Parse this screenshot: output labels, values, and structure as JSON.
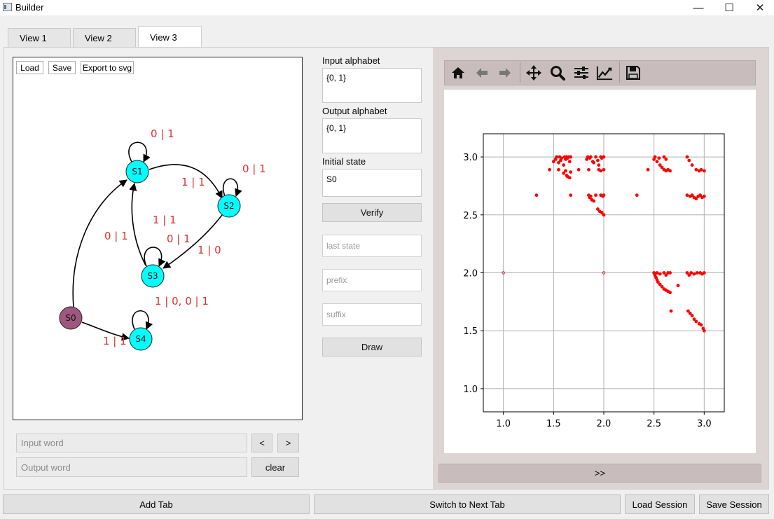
{
  "window": {
    "title": "Builder",
    "minimize_glyph": "—",
    "maximize_glyph": "☐",
    "close_glyph": "✕"
  },
  "tabs": [
    {
      "label": "View 1"
    },
    {
      "label": "View 2"
    },
    {
      "label": "View 3",
      "active": true
    }
  ],
  "graph": {
    "buttons": {
      "load": "Load",
      "save": "Save",
      "export": "Export to svg"
    },
    "nodes": [
      {
        "id": "S0",
        "label": "S0",
        "color": "#a0577f",
        "initial": true
      },
      {
        "id": "S1",
        "label": "S1",
        "color": "#00ffff"
      },
      {
        "id": "S2",
        "label": "S2",
        "color": "#00ffff"
      },
      {
        "id": "S3",
        "label": "S3",
        "color": "#00ffff"
      },
      {
        "id": "S4",
        "label": "S4",
        "color": "#00ffff"
      }
    ],
    "edges": [
      {
        "from": "S1",
        "to": "S1",
        "label": "0 | 1"
      },
      {
        "from": "S1",
        "to": "S2",
        "label": "1 | 1"
      },
      {
        "from": "S2",
        "to": "S2",
        "label": "0 | 1"
      },
      {
        "from": "S2",
        "to": "S3",
        "label": "1 | 0"
      },
      {
        "from": "S3",
        "to": "S1",
        "label": "1 | 1"
      },
      {
        "from": "S3",
        "to": "S3",
        "label": "0 | 1"
      },
      {
        "from": "S0",
        "to": "S1",
        "label": "0 | 1"
      },
      {
        "from": "S0",
        "to": "S4",
        "label": "1 | 1"
      },
      {
        "from": "S4",
        "to": "S4",
        "label": "1 | 0, 0 | 1"
      }
    ],
    "edge_label_color": "#e03030"
  },
  "word_controls": {
    "input_placeholder": "Input word",
    "output_placeholder": "Output word",
    "prev_label": "<",
    "next_label": ">",
    "clear_label": "clear"
  },
  "settings": {
    "input_alphabet_label": "Input alphabet",
    "input_alphabet_value": "{0, 1}",
    "output_alphabet_label": "Output alphabet",
    "output_alphabet_value": "{0, 1}",
    "initial_state_label": "Initial state",
    "initial_state_value": "S0",
    "verify_label": "Verify",
    "last_state_placeholder": "last state",
    "prefix_placeholder": "prefix",
    "suffix_placeholder": "suffix",
    "draw_label": "Draw"
  },
  "plot_toolbar": {
    "icons": [
      "home-icon",
      "back-arrow-icon",
      "forward-arrow-icon",
      "pan-icon",
      "zoom-icon",
      "configure-subplots-icon",
      "edit-axis-icon",
      "save-figure-icon"
    ]
  },
  "expand_label": ">>",
  "bottom_bar": {
    "add_tab": "Add Tab",
    "switch_tab": "Switch to Next Tab",
    "load_session": "Load Session",
    "save_session": "Save Session"
  },
  "chart_data": {
    "type": "scatter",
    "title": "",
    "xlabel": "",
    "ylabel": "",
    "xlim": [
      0.8,
      3.2
    ],
    "ylim": [
      0.8,
      3.2
    ],
    "xticks": [
      "1.0",
      "1.5",
      "2.0",
      "2.5",
      "3.0"
    ],
    "yticks": [
      "1.0",
      "1.5",
      "2.0",
      "2.5",
      "3.0"
    ],
    "grid": true,
    "marker_color": "#ff0000",
    "points": [
      [
        1.0,
        2.0
      ],
      [
        2.0,
        2.0
      ],
      [
        1.33,
        2.67
      ],
      [
        1.46,
        2.89
      ],
      [
        1.5,
        2.96
      ],
      [
        1.52,
        2.98
      ],
      [
        1.53,
        3.0
      ],
      [
        1.55,
        2.95
      ],
      [
        1.56,
        3.0
      ],
      [
        1.57,
        2.97
      ],
      [
        1.58,
        2.99
      ],
      [
        1.6,
        2.93
      ],
      [
        1.61,
        3.0
      ],
      [
        1.62,
        2.98
      ],
      [
        1.63,
        3.0
      ],
      [
        1.64,
        2.99
      ],
      [
        1.65,
        3.0
      ],
      [
        1.66,
        2.96
      ],
      [
        1.67,
        3.0
      ],
      [
        1.55,
        2.89
      ],
      [
        1.6,
        2.86
      ],
      [
        1.62,
        2.88
      ],
      [
        1.63,
        2.84
      ],
      [
        1.64,
        2.83
      ],
      [
        1.66,
        2.82
      ],
      [
        1.67,
        2.87
      ],
      [
        1.67,
        2.67
      ],
      [
        1.75,
        2.89
      ],
      [
        1.83,
        2.98
      ],
      [
        1.84,
        3.0
      ],
      [
        1.86,
        2.99
      ],
      [
        1.87,
        3.0
      ],
      [
        1.89,
        2.96
      ],
      [
        1.9,
        2.95
      ],
      [
        1.92,
        3.0
      ],
      [
        1.94,
        2.97
      ],
      [
        1.95,
        2.93
      ],
      [
        1.97,
        3.0
      ],
      [
        1.98,
        2.99
      ],
      [
        2.0,
        3.0
      ],
      [
        1.85,
        2.67
      ],
      [
        1.86,
        2.65
      ],
      [
        1.87,
        2.66
      ],
      [
        1.88,
        2.63
      ],
      [
        1.9,
        2.62
      ],
      [
        1.92,
        2.67
      ],
      [
        1.94,
        2.55
      ],
      [
        1.96,
        2.53
      ],
      [
        1.98,
        2.52
      ],
      [
        2.0,
        2.5
      ],
      [
        1.95,
        2.89
      ],
      [
        1.97,
        2.88
      ],
      [
        2.0,
        2.89
      ],
      [
        1.97,
        2.67
      ],
      [
        1.99,
        2.66
      ],
      [
        2.0,
        2.67
      ],
      [
        1.85,
        2.89
      ],
      [
        2.33,
        2.67
      ],
      [
        2.44,
        2.89
      ],
      [
        2.5,
        2.98
      ],
      [
        2.51,
        3.0
      ],
      [
        2.53,
        2.96
      ],
      [
        2.55,
        2.99
      ],
      [
        2.56,
        2.93
      ],
      [
        2.58,
        2.91
      ],
      [
        2.6,
        2.89
      ],
      [
        2.62,
        2.88
      ],
      [
        2.64,
        2.89
      ],
      [
        2.66,
        2.88
      ],
      [
        2.6,
        3.0
      ],
      [
        2.62,
        2.98
      ],
      [
        2.83,
        3.0
      ],
      [
        2.85,
        2.97
      ],
      [
        2.88,
        2.93
      ],
      [
        2.92,
        2.89
      ],
      [
        2.95,
        2.88
      ],
      [
        2.97,
        2.89
      ],
      [
        3.0,
        2.88
      ],
      [
        2.83,
        2.67
      ],
      [
        2.86,
        2.66
      ],
      [
        2.88,
        2.67
      ],
      [
        2.9,
        2.65
      ],
      [
        2.92,
        2.64
      ],
      [
        2.94,
        2.66
      ],
      [
        2.96,
        2.67
      ],
      [
        2.98,
        2.65
      ],
      [
        3.0,
        2.66
      ],
      [
        2.5,
        2.0
      ],
      [
        2.51,
        1.98
      ],
      [
        2.52,
        1.96
      ],
      [
        2.53,
        1.94
      ],
      [
        2.54,
        1.92
      ],
      [
        2.56,
        1.9
      ],
      [
        2.58,
        1.88
      ],
      [
        2.6,
        1.86
      ],
      [
        2.62,
        1.85
      ],
      [
        2.64,
        1.84
      ],
      [
        2.66,
        1.83
      ],
      [
        2.53,
        2.0
      ],
      [
        2.56,
        1.99
      ],
      [
        2.6,
        2.0
      ],
      [
        2.62,
        1.98
      ],
      [
        2.64,
        2.0
      ],
      [
        2.66,
        2.0
      ],
      [
        2.67,
        1.67
      ],
      [
        2.74,
        1.89
      ],
      [
        2.83,
        2.0
      ],
      [
        2.85,
        1.98
      ],
      [
        2.87,
        2.0
      ],
      [
        2.9,
        1.99
      ],
      [
        2.93,
        2.0
      ],
      [
        2.96,
        2.0
      ],
      [
        2.98,
        1.99
      ],
      [
        3.0,
        2.0
      ],
      [
        2.84,
        1.67
      ],
      [
        2.86,
        1.65
      ],
      [
        2.88,
        1.63
      ],
      [
        2.9,
        1.6
      ],
      [
        2.92,
        1.58
      ],
      [
        2.95,
        1.56
      ],
      [
        2.97,
        1.55
      ],
      [
        2.99,
        1.52
      ],
      [
        3.0,
        1.5
      ]
    ]
  }
}
